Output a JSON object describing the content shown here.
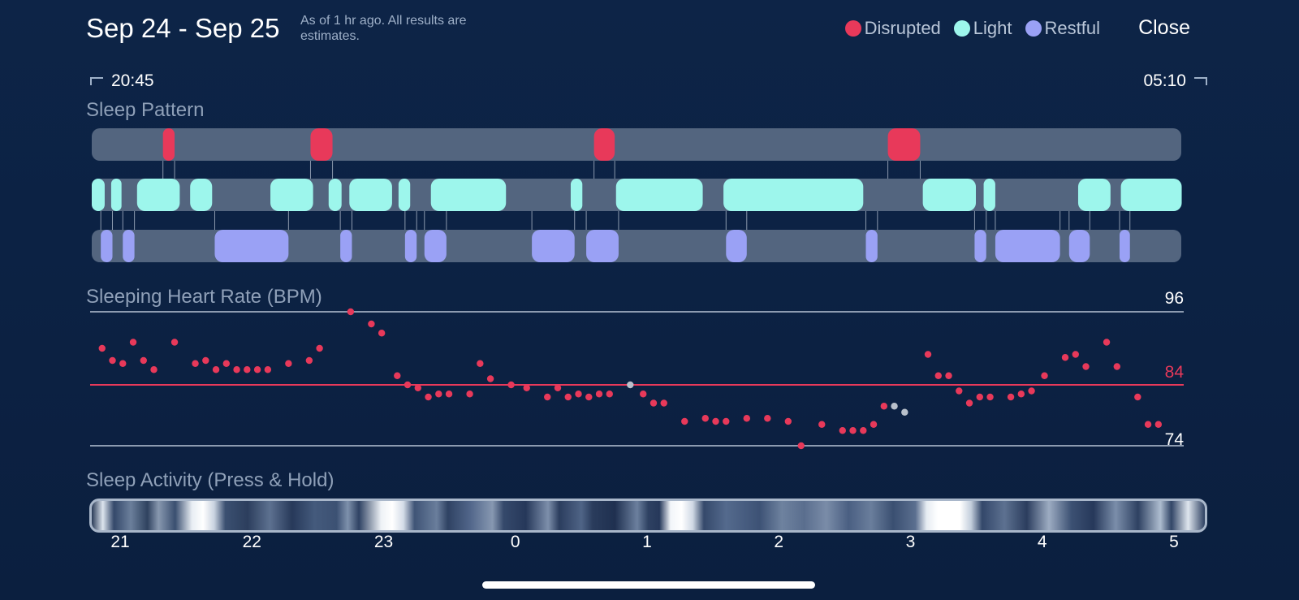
{
  "header": {
    "date_range": "Sep 24 - Sep 25",
    "estimate_note": "As of 1 hr ago. All results are estimates.",
    "legend": [
      {
        "label": "Disrupted",
        "color": "#e8395a"
      },
      {
        "label": "Light",
        "color": "#9df6ec"
      },
      {
        "label": "Restful",
        "color": "#9aa1f5"
      }
    ],
    "close_label": "Close"
  },
  "time_range": {
    "start": "20:45",
    "end": "05:10"
  },
  "colors": {
    "disrupted": "#e8395a",
    "light": "#9df6ec",
    "restful": "#9aa1f5",
    "track": "#53657f",
    "heart_dot": "#e8395a",
    "heart_dot_muted": "#b9c0cb"
  },
  "sleep_pattern": {
    "title": "Sleep Pattern",
    "hour_start": 20.75,
    "hour_end": 29.1667,
    "disrupted": [
      [
        21.3,
        21.39
      ],
      [
        22.44,
        22.61
      ],
      [
        24.63,
        24.79
      ],
      [
        26.9,
        27.15
      ]
    ],
    "light": [
      [
        20.75,
        20.85
      ],
      [
        20.9,
        20.98
      ],
      [
        21.1,
        21.43
      ],
      [
        21.51,
        21.68
      ],
      [
        22.13,
        22.46
      ],
      [
        22.58,
        22.68
      ],
      [
        22.74,
        23.07
      ],
      [
        23.12,
        23.21
      ],
      [
        23.37,
        23.95
      ],
      [
        24.45,
        24.54
      ],
      [
        24.8,
        25.47
      ],
      [
        25.63,
        26.71
      ],
      [
        27.17,
        27.58
      ],
      [
        27.64,
        27.73
      ],
      [
        29.0,
        29.09
      ],
      [
        28.37,
        28.62
      ],
      [
        28.7,
        29.17
      ]
    ],
    "restful": [
      [
        20.82,
        20.91
      ],
      [
        20.99,
        21.08
      ],
      [
        21.7,
        22.27
      ],
      [
        22.67,
        22.76
      ],
      [
        23.17,
        23.26
      ],
      [
        23.32,
        23.49
      ],
      [
        24.15,
        24.48
      ],
      [
        24.57,
        24.82
      ],
      [
        25.65,
        25.81
      ],
      [
        26.73,
        26.82
      ],
      [
        27.57,
        27.66
      ],
      [
        27.73,
        28.23
      ],
      [
        28.3,
        28.46
      ],
      [
        28.69,
        28.77
      ]
    ]
  },
  "heart_rate": {
    "title": "Sleeping Heart Rate (BPM)",
    "max_label": "96",
    "avg_label": "84",
    "min_label": "74",
    "max": 96,
    "avg": 84,
    "min": 74,
    "points": [
      [
        20.83,
        90
      ],
      [
        20.91,
        88
      ],
      [
        20.99,
        87.5
      ],
      [
        21.07,
        91
      ],
      [
        21.15,
        88
      ],
      [
        21.23,
        86.5
      ],
      [
        21.39,
        91
      ],
      [
        21.55,
        87.5
      ],
      [
        21.63,
        88
      ],
      [
        21.71,
        86.5
      ],
      [
        21.79,
        87.5
      ],
      [
        21.87,
        86.5
      ],
      [
        21.95,
        86.5
      ],
      [
        22.03,
        86.5
      ],
      [
        22.11,
        86.5
      ],
      [
        22.27,
        87.5
      ],
      [
        22.43,
        88
      ],
      [
        22.51,
        90
      ],
      [
        22.75,
        96
      ],
      [
        22.91,
        94
      ],
      [
        22.99,
        92.5
      ],
      [
        23.11,
        85.5
      ],
      [
        23.19,
        84
      ],
      [
        23.27,
        83.5
      ],
      [
        23.35,
        82
      ],
      [
        23.43,
        82.5
      ],
      [
        23.51,
        82.5
      ],
      [
        23.67,
        82.5
      ],
      [
        23.75,
        87.5
      ],
      [
        23.83,
        85
      ],
      [
        23.99,
        84
      ],
      [
        24.11,
        83.5
      ],
      [
        24.27,
        82
      ],
      [
        24.35,
        83.5
      ],
      [
        24.43,
        82
      ],
      [
        24.51,
        82.5
      ],
      [
        24.59,
        82
      ],
      [
        24.67,
        82.5
      ],
      [
        24.75,
        82.5
      ],
      [
        24.91,
        84,
        "m"
      ],
      [
        25.01,
        82.5
      ],
      [
        25.09,
        81
      ],
      [
        25.17,
        81
      ],
      [
        25.33,
        78
      ],
      [
        25.49,
        78.5
      ],
      [
        25.57,
        78
      ],
      [
        25.65,
        78
      ],
      [
        25.81,
        78.5
      ],
      [
        25.97,
        78.5
      ],
      [
        26.13,
        78
      ],
      [
        26.23,
        74
      ],
      [
        26.39,
        77.5
      ],
      [
        26.55,
        76.5
      ],
      [
        26.63,
        76.5
      ],
      [
        26.71,
        76.5
      ],
      [
        26.79,
        77.5
      ],
      [
        26.87,
        80.5
      ],
      [
        26.95,
        80.5,
        "m"
      ],
      [
        27.03,
        79.5,
        "m"
      ],
      [
        27.21,
        89
      ],
      [
        27.29,
        85.5
      ],
      [
        27.37,
        85.5
      ],
      [
        27.45,
        83
      ],
      [
        27.53,
        81
      ],
      [
        27.61,
        82
      ],
      [
        27.69,
        82
      ],
      [
        27.85,
        82
      ],
      [
        27.93,
        82.5
      ],
      [
        28.01,
        83
      ],
      [
        28.11,
        85.5
      ],
      [
        28.27,
        88.5
      ],
      [
        28.35,
        89
      ],
      [
        28.43,
        87
      ],
      [
        28.59,
        91
      ],
      [
        28.67,
        87
      ],
      [
        28.83,
        82
      ],
      [
        28.91,
        77.5
      ],
      [
        28.99,
        77.5
      ]
    ]
  },
  "activity": {
    "title": "Sleep Activity (Press & Hold)"
  },
  "x_axis": {
    "ticks": [
      {
        "label": "21",
        "hour": 21
      },
      {
        "label": "22",
        "hour": 22
      },
      {
        "label": "23",
        "hour": 23
      },
      {
        "label": "0",
        "hour": 24
      },
      {
        "label": "1",
        "hour": 25
      },
      {
        "label": "2",
        "hour": 26
      },
      {
        "label": "3",
        "hour": 27
      },
      {
        "label": "4",
        "hour": 28
      },
      {
        "label": "5",
        "hour": 29
      }
    ]
  }
}
